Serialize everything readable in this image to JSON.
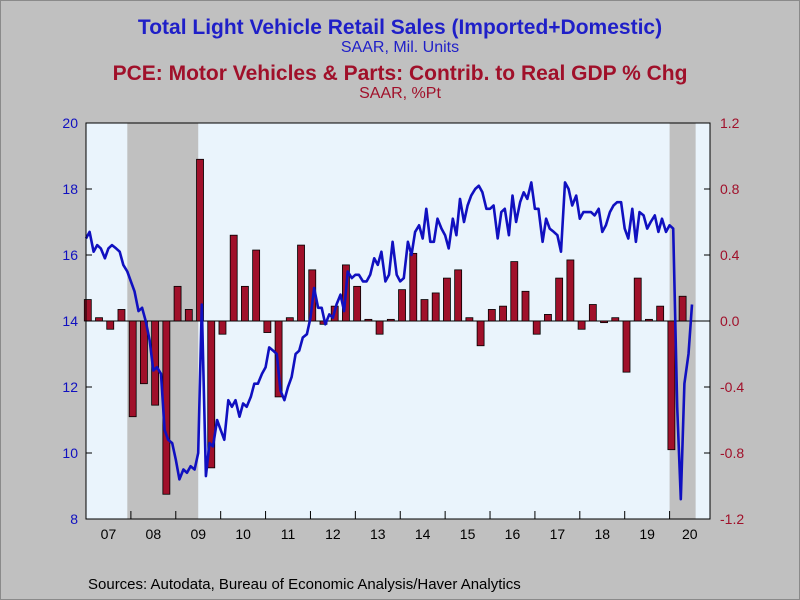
{
  "title": "Total Light Vehicle Retail Sales (Imported+Domestic)",
  "subtitle": "SAAR, Mil. Units",
  "title2": "PCE: Motor Vehicles & Parts: Contrib. to Real GDP % Chg",
  "subtitle2": "SAAR, %Pt",
  "source": "Sources:  Autodata, Bureau of Economic Analysis/Haver Analytics",
  "colors": {
    "line": "#1010c0",
    "bar": "#a0102a",
    "plot_bg": "#eaf4fc",
    "recession": "#c0c0c0",
    "left_axis_text": "#1010c0",
    "right_axis_text": "#a0102a"
  },
  "chart_data": {
    "type": "line+bar",
    "x_ticks": [
      "07",
      "08",
      "09",
      "10",
      "11",
      "12",
      "13",
      "14",
      "15",
      "16",
      "17",
      "18",
      "19",
      "20"
    ],
    "x_range": [
      2007.0,
      2020.9
    ],
    "left_axis": {
      "ticks": [
        "8",
        "10",
        "12",
        "14",
        "16",
        "18",
        "20"
      ],
      "ylim": [
        8,
        20
      ]
    },
    "right_axis": {
      "ticks": [
        "-1.2",
        "-0.8",
        "-0.4",
        "0.0",
        "0.4",
        "0.8",
        "1.2"
      ],
      "ylim": [
        -1.2,
        1.2
      ]
    },
    "recessions": [
      [
        2007.92,
        2009.5
      ],
      [
        2020.0,
        2020.58
      ]
    ],
    "series": [
      {
        "axis": "left",
        "kind": "line",
        "points": [
          [
            2007.0,
            16.5
          ],
          [
            2007.08,
            16.7
          ],
          [
            2007.17,
            16.1
          ],
          [
            2007.25,
            16.3
          ],
          [
            2007.33,
            16.2
          ],
          [
            2007.42,
            15.9
          ],
          [
            2007.5,
            16.2
          ],
          [
            2007.58,
            16.3
          ],
          [
            2007.67,
            16.2
          ],
          [
            2007.75,
            16.1
          ],
          [
            2007.83,
            15.7
          ],
          [
            2007.92,
            15.5
          ],
          [
            2008.0,
            15.2
          ],
          [
            2008.08,
            14.9
          ],
          [
            2008.17,
            14.3
          ],
          [
            2008.25,
            14.4
          ],
          [
            2008.33,
            14.0
          ],
          [
            2008.42,
            13.4
          ],
          [
            2008.5,
            12.5
          ],
          [
            2008.58,
            12.6
          ],
          [
            2008.67,
            12.4
          ],
          [
            2008.75,
            10.7
          ],
          [
            2008.83,
            10.4
          ],
          [
            2008.92,
            10.3
          ],
          [
            2009.0,
            9.8
          ],
          [
            2009.08,
            9.2
          ],
          [
            2009.17,
            9.5
          ],
          [
            2009.25,
            9.4
          ],
          [
            2009.33,
            9.6
          ],
          [
            2009.42,
            9.5
          ],
          [
            2009.5,
            10.0
          ],
          [
            2009.58,
            14.5
          ],
          [
            2009.67,
            9.3
          ],
          [
            2009.75,
            10.3
          ],
          [
            2009.83,
            10.2
          ],
          [
            2009.92,
            11.0
          ],
          [
            2010.0,
            10.7
          ],
          [
            2010.08,
            10.4
          ],
          [
            2010.17,
            11.6
          ],
          [
            2010.25,
            11.4
          ],
          [
            2010.33,
            11.6
          ],
          [
            2010.42,
            11.1
          ],
          [
            2010.5,
            11.5
          ],
          [
            2010.58,
            11.4
          ],
          [
            2010.67,
            11.7
          ],
          [
            2010.75,
            12.1
          ],
          [
            2010.83,
            12.1
          ],
          [
            2010.92,
            12.4
          ],
          [
            2011.0,
            12.6
          ],
          [
            2011.08,
            13.2
          ],
          [
            2011.17,
            13.1
          ],
          [
            2011.25,
            13.0
          ],
          [
            2011.33,
            11.9
          ],
          [
            2011.42,
            11.6
          ],
          [
            2011.5,
            12.0
          ],
          [
            2011.58,
            12.3
          ],
          [
            2011.67,
            13.0
          ],
          [
            2011.75,
            13.1
          ],
          [
            2011.83,
            13.5
          ],
          [
            2011.92,
            13.6
          ],
          [
            2012.0,
            14.1
          ],
          [
            2012.08,
            15.0
          ],
          [
            2012.17,
            14.4
          ],
          [
            2012.25,
            14.4
          ],
          [
            2012.33,
            13.9
          ],
          [
            2012.42,
            14.2
          ],
          [
            2012.5,
            14.1
          ],
          [
            2012.58,
            14.5
          ],
          [
            2012.67,
            14.8
          ],
          [
            2012.75,
            14.3
          ],
          [
            2012.83,
            15.5
          ],
          [
            2012.92,
            15.3
          ],
          [
            2013.0,
            15.4
          ],
          [
            2013.08,
            15.4
          ],
          [
            2013.17,
            15.2
          ],
          [
            2013.25,
            15.2
          ],
          [
            2013.33,
            15.4
          ],
          [
            2013.42,
            15.9
          ],
          [
            2013.5,
            15.7
          ],
          [
            2013.58,
            16.1
          ],
          [
            2013.67,
            15.2
          ],
          [
            2013.75,
            15.4
          ],
          [
            2013.83,
            16.4
          ],
          [
            2013.92,
            15.4
          ],
          [
            2014.0,
            15.2
          ],
          [
            2014.08,
            15.3
          ],
          [
            2014.17,
            16.4
          ],
          [
            2014.25,
            16.0
          ],
          [
            2014.33,
            16.7
          ],
          [
            2014.42,
            16.9
          ],
          [
            2014.5,
            16.5
          ],
          [
            2014.58,
            17.4
          ],
          [
            2014.67,
            16.4
          ],
          [
            2014.75,
            16.4
          ],
          [
            2014.83,
            17.1
          ],
          [
            2014.92,
            16.8
          ],
          [
            2015.0,
            16.6
          ],
          [
            2015.08,
            16.2
          ],
          [
            2015.17,
            17.1
          ],
          [
            2015.25,
            16.6
          ],
          [
            2015.33,
            17.7
          ],
          [
            2015.42,
            17.0
          ],
          [
            2015.5,
            17.5
          ],
          [
            2015.58,
            17.8
          ],
          [
            2015.67,
            18.0
          ],
          [
            2015.75,
            18.1
          ],
          [
            2015.83,
            17.9
          ],
          [
            2015.92,
            17.4
          ],
          [
            2016.0,
            17.4
          ],
          [
            2016.08,
            17.5
          ],
          [
            2016.17,
            16.5
          ],
          [
            2016.25,
            17.3
          ],
          [
            2016.33,
            17.4
          ],
          [
            2016.42,
            16.6
          ],
          [
            2016.5,
            17.8
          ],
          [
            2016.58,
            17.0
          ],
          [
            2016.67,
            17.6
          ],
          [
            2016.75,
            17.9
          ],
          [
            2016.83,
            17.7
          ],
          [
            2016.92,
            18.2
          ],
          [
            2017.0,
            17.4
          ],
          [
            2017.08,
            17.4
          ],
          [
            2017.17,
            16.4
          ],
          [
            2017.25,
            17.1
          ],
          [
            2017.33,
            16.8
          ],
          [
            2017.42,
            16.7
          ],
          [
            2017.5,
            16.6
          ],
          [
            2017.58,
            16.1
          ],
          [
            2017.67,
            18.2
          ],
          [
            2017.75,
            18.0
          ],
          [
            2017.83,
            17.5
          ],
          [
            2017.92,
            17.8
          ],
          [
            2018.0,
            17.1
          ],
          [
            2018.08,
            17.3
          ],
          [
            2018.17,
            17.3
          ],
          [
            2018.25,
            17.3
          ],
          [
            2018.33,
            17.2
          ],
          [
            2018.42,
            17.4
          ],
          [
            2018.5,
            16.7
          ],
          [
            2018.58,
            16.9
          ],
          [
            2018.67,
            17.3
          ],
          [
            2018.75,
            17.5
          ],
          [
            2018.83,
            17.6
          ],
          [
            2018.92,
            17.6
          ],
          [
            2019.0,
            16.8
          ],
          [
            2019.08,
            16.5
          ],
          [
            2019.17,
            17.4
          ],
          [
            2019.25,
            16.4
          ],
          [
            2019.33,
            17.3
          ],
          [
            2019.42,
            17.2
          ],
          [
            2019.5,
            16.8
          ],
          [
            2019.58,
            17.0
          ],
          [
            2019.67,
            17.2
          ],
          [
            2019.75,
            16.7
          ],
          [
            2019.83,
            17.1
          ],
          [
            2019.92,
            16.7
          ],
          [
            2020.0,
            16.9
          ],
          [
            2020.08,
            16.8
          ],
          [
            2020.17,
            11.4
          ],
          [
            2020.25,
            8.6
          ],
          [
            2020.33,
            12.1
          ],
          [
            2020.42,
            13.0
          ],
          [
            2020.5,
            14.5
          ]
        ]
      },
      {
        "axis": "right",
        "kind": "bar",
        "points": [
          [
            2007.04,
            0.13
          ],
          [
            2007.29,
            0.02
          ],
          [
            2007.54,
            -0.05
          ],
          [
            2007.79,
            0.07
          ],
          [
            2008.04,
            -0.58
          ],
          [
            2008.29,
            -0.38
          ],
          [
            2008.54,
            -0.51
          ],
          [
            2008.79,
            -1.05
          ],
          [
            2009.04,
            0.21
          ],
          [
            2009.29,
            0.07
          ],
          [
            2009.54,
            0.98
          ],
          [
            2009.79,
            -0.89
          ],
          [
            2010.04,
            -0.08
          ],
          [
            2010.29,
            0.52
          ],
          [
            2010.54,
            0.21
          ],
          [
            2010.79,
            0.43
          ],
          [
            2011.04,
            -0.07
          ],
          [
            2011.29,
            -0.46
          ],
          [
            2011.54,
            0.02
          ],
          [
            2011.79,
            0.46
          ],
          [
            2012.04,
            0.31
          ],
          [
            2012.29,
            -0.02
          ],
          [
            2012.54,
            0.09
          ],
          [
            2012.79,
            0.34
          ],
          [
            2013.04,
            0.21
          ],
          [
            2013.29,
            0.01
          ],
          [
            2013.54,
            -0.08
          ],
          [
            2013.79,
            0.01
          ],
          [
            2014.04,
            0.19
          ],
          [
            2014.29,
            0.41
          ],
          [
            2014.54,
            0.13
          ],
          [
            2014.79,
            0.17
          ],
          [
            2015.04,
            0.26
          ],
          [
            2015.29,
            0.31
          ],
          [
            2015.54,
            0.02
          ],
          [
            2015.79,
            -0.15
          ],
          [
            2016.04,
            0.07
          ],
          [
            2016.29,
            0.09
          ],
          [
            2016.54,
            0.36
          ],
          [
            2016.79,
            0.18
          ],
          [
            2017.04,
            -0.08
          ],
          [
            2017.29,
            0.04
          ],
          [
            2017.54,
            0.26
          ],
          [
            2017.79,
            0.37
          ],
          [
            2018.04,
            -0.05
          ],
          [
            2018.29,
            0.1
          ],
          [
            2018.54,
            -0.01
          ],
          [
            2018.79,
            0.02
          ],
          [
            2019.04,
            -0.31
          ],
          [
            2019.29,
            0.26
          ],
          [
            2019.54,
            0.01
          ],
          [
            2019.79,
            0.09
          ],
          [
            2020.04,
            -0.78
          ],
          [
            2020.29,
            0.15
          ]
        ]
      }
    ]
  }
}
